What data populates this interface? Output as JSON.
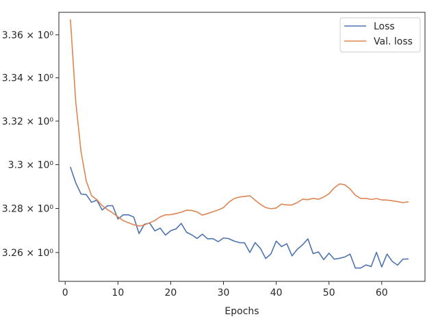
{
  "chart_data": {
    "type": "line",
    "title": "",
    "xlabel": "Epochs",
    "ylabel": "",
    "xlim": [
      -1.2,
      68.2
    ],
    "ylim": [
      3.247,
      3.3705
    ],
    "y_scale": "log",
    "grid": false,
    "legend_position": "top-right",
    "x_ticks": [
      0,
      10,
      20,
      30,
      40,
      50,
      60
    ],
    "x_tick_labels": [
      "0",
      "10",
      "20",
      "30",
      "40",
      "50",
      "60"
    ],
    "y_ticks": [
      3.26,
      3.28,
      3.3,
      3.32,
      3.34,
      3.36
    ],
    "y_tick_labels": [
      "3.26 × 10⁰",
      "3.28 × 10⁰",
      "3.3 × 10⁰",
      "3.32 × 10⁰",
      "3.34 × 10⁰",
      "3.36 × 10⁰"
    ],
    "x": [
      1,
      2,
      3,
      4,
      5,
      6,
      7,
      8,
      9,
      10,
      11,
      12,
      13,
      14,
      15,
      16,
      17,
      18,
      19,
      20,
      21,
      22,
      23,
      24,
      25,
      26,
      27,
      28,
      29,
      30,
      31,
      32,
      33,
      34,
      35,
      36,
      37,
      38,
      39,
      40,
      41,
      42,
      43,
      44,
      45,
      46,
      47,
      48,
      49,
      50,
      51,
      52,
      53,
      54,
      55,
      56,
      57,
      58,
      59,
      60,
      61,
      62,
      63,
      64,
      65
    ],
    "series": [
      {
        "name": "Loss",
        "color": "#4c72b0",
        "values": [
          3.2988,
          3.2917,
          3.2866,
          3.2863,
          3.2828,
          3.2838,
          3.2793,
          3.2812,
          3.2813,
          3.2752,
          3.2771,
          3.2771,
          3.2761,
          3.2686,
          3.2728,
          3.2734,
          3.2698,
          3.2711,
          3.2679,
          3.2699,
          3.2707,
          3.2732,
          3.2692,
          3.268,
          3.2664,
          3.2683,
          3.2662,
          3.2663,
          3.2649,
          3.2666,
          3.2663,
          3.2652,
          3.2645,
          3.2644,
          3.26,
          3.2645,
          3.2619,
          3.2573,
          3.2594,
          3.2652,
          3.2627,
          3.264,
          3.2585,
          3.2615,
          3.2635,
          3.2662,
          3.2595,
          3.2603,
          3.2568,
          3.2597,
          3.257,
          3.2574,
          3.258,
          3.2593,
          3.253,
          3.253,
          3.2544,
          3.2537,
          3.2601,
          3.2535,
          3.2593,
          3.256,
          3.2543,
          3.257,
          3.2571
        ]
      },
      {
        "name": "Val. loss",
        "color": "#dd8452",
        "values": [
          3.367,
          3.329,
          3.306,
          3.2925,
          3.2858,
          3.284,
          3.2813,
          3.2795,
          3.278,
          3.2762,
          3.2745,
          3.2735,
          3.2726,
          3.272,
          3.2725,
          3.2735,
          3.2745,
          3.2762,
          3.2771,
          3.2772,
          3.2777,
          3.2783,
          3.2792,
          3.2791,
          3.2784,
          3.277,
          3.2777,
          3.2785,
          3.2793,
          3.2804,
          3.2828,
          3.2845,
          3.2852,
          3.2855,
          3.2858,
          3.2838,
          3.2819,
          3.2804,
          3.2799,
          3.2802,
          3.282,
          3.2816,
          3.2816,
          3.2827,
          3.2842,
          3.284,
          3.2846,
          3.2842,
          3.2852,
          3.2867,
          3.2894,
          3.2912,
          3.2908,
          3.2889,
          3.286,
          3.2846,
          3.2846,
          3.2841,
          3.2845,
          3.2839,
          3.2838,
          3.2835,
          3.2831,
          3.2827,
          3.283
        ]
      }
    ]
  }
}
